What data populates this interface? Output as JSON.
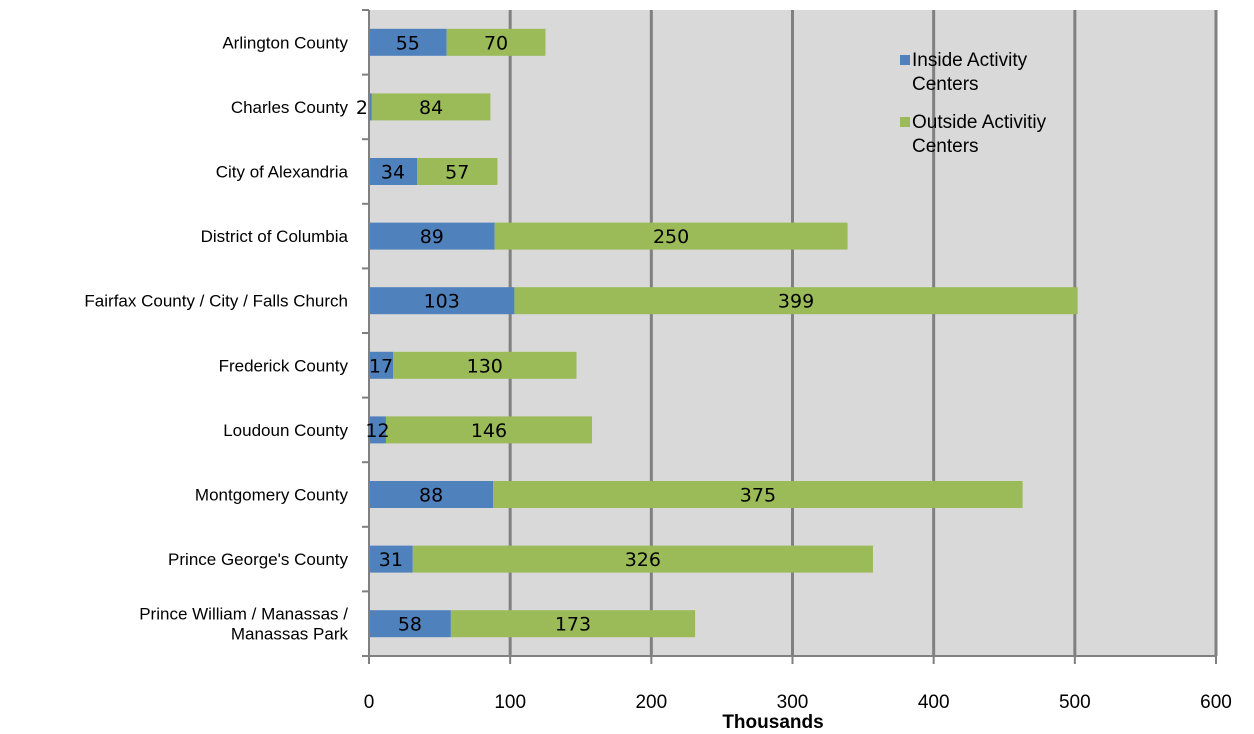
{
  "chart_data": {
    "type": "bar",
    "orientation": "horizontal",
    "stacked": true,
    "categories": [
      [
        "Arlington County"
      ],
      [
        "Charles County"
      ],
      [
        "City of Alexandria"
      ],
      [
        "District of Columbia"
      ],
      [
        "Fairfax County / City / Falls Church"
      ],
      [
        "Frederick County"
      ],
      [
        "Loudoun County"
      ],
      [
        "Montgomery County"
      ],
      [
        "Prince George's County"
      ],
      [
        "Prince William / Manassas /",
        "Manassas Park"
      ]
    ],
    "series": [
      {
        "name": [
          "Inside Activity",
          "Centers"
        ],
        "color": "#4f81bd",
        "values": [
          55,
          2,
          34,
          89,
          103,
          17,
          12,
          88,
          31,
          58
        ]
      },
      {
        "name": [
          "Outside Activitiy",
          "Centers"
        ],
        "color": "#9bbb59",
        "values": [
          70,
          84,
          57,
          250,
          399,
          130,
          146,
          375,
          326,
          173
        ]
      }
    ],
    "xlabel": "Thousands",
    "xlim": [
      0,
      600
    ],
    "xticks": [
      0,
      100,
      200,
      300,
      400,
      500,
      600
    ],
    "grid": true,
    "legend_position": "top-right",
    "plot_background": "#d9d9d9",
    "gridline_color": "#808080"
  }
}
